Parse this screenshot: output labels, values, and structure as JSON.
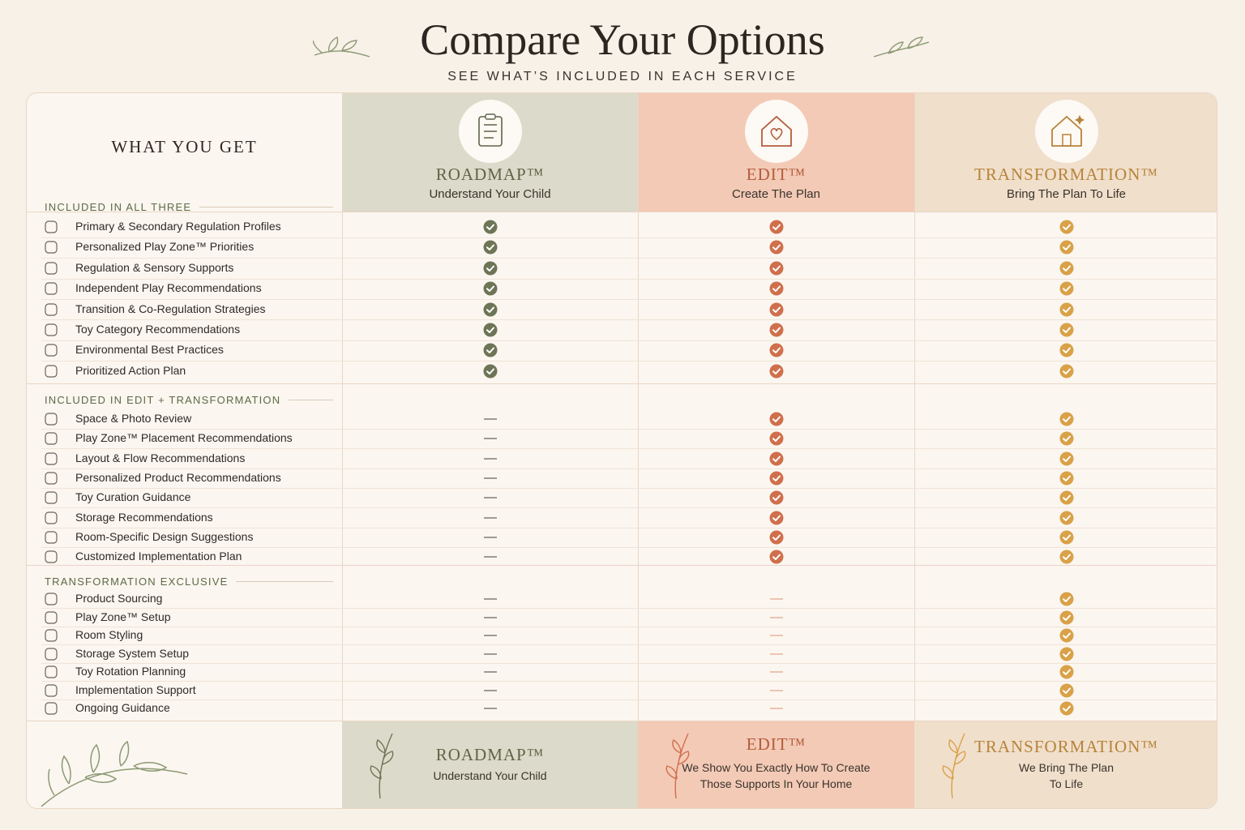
{
  "header": {
    "title": "Compare Your Options",
    "subtitle": "SEE WHAT’S INCLUDED IN EACH SERVICE"
  },
  "table": {
    "corner": "WHAT YOU GET",
    "columns": [
      {
        "name": "ROADMAP™",
        "tagline": "Understand Your Child",
        "color": "#6e7556",
        "name_color": "#5f6447",
        "background": "#dcdaca"
      },
      {
        "name": "EDIT™",
        "tagline": "Create The Plan",
        "color": "#d06f4c",
        "name_color": "#b45c3c",
        "background": "#f3cab6"
      },
      {
        "name": "TRANSFORMATION™",
        "tagline": "Bring The Plan To Life",
        "color": "#d9a148",
        "name_color": "#b7833a",
        "background": "#f0dfcb"
      }
    ],
    "sections": [
      {
        "title": "INCLUDED IN ALL THREE",
        "rows": [
          {
            "label": "Primary & Secondary Regulation Profiles",
            "included": [
              true,
              true,
              true
            ]
          },
          {
            "label": "Personalized Play Zone™ Priorities",
            "included": [
              true,
              true,
              true
            ]
          },
          {
            "label": "Regulation & Sensory Supports",
            "included": [
              true,
              true,
              true
            ]
          },
          {
            "label": "Independent Play Recommendations",
            "included": [
              true,
              true,
              true
            ]
          },
          {
            "label": "Transition & Co-Regulation Strategies",
            "included": [
              true,
              true,
              true
            ]
          },
          {
            "label": "Toy Category Recommendations",
            "included": [
              true,
              true,
              true
            ]
          },
          {
            "label": "Environmental Best Practices",
            "included": [
              true,
              true,
              true
            ]
          },
          {
            "label": "Prioritized Action Plan",
            "included": [
              true,
              true,
              true
            ]
          }
        ]
      },
      {
        "title": "INCLUDED IN EDIT + TRANSFORMATION",
        "rows": [
          {
            "label": "Space & Photo Review",
            "included": [
              false,
              true,
              true
            ]
          },
          {
            "label": "Play Zone™ Placement Recommendations",
            "included": [
              false,
              true,
              true
            ]
          },
          {
            "label": "Layout & Flow Recommendations",
            "included": [
              false,
              true,
              true
            ]
          },
          {
            "label": "Personalized Product Recommendations",
            "included": [
              false,
              true,
              true
            ]
          },
          {
            "label": "Toy Curation Guidance",
            "included": [
              false,
              true,
              true
            ]
          },
          {
            "label": "Storage Recommendations",
            "included": [
              false,
              true,
              true
            ]
          },
          {
            "label": "Room-Specific Design Suggestions",
            "included": [
              false,
              true,
              true
            ]
          },
          {
            "label": "Customized Implementation Plan",
            "included": [
              false,
              true,
              true
            ]
          }
        ]
      },
      {
        "title": "TRANSFORMATION EXCLUSIVE",
        "rows": [
          {
            "label": "Product Sourcing",
            "included": [
              false,
              false,
              true
            ]
          },
          {
            "label": "Play Zone™ Setup",
            "included": [
              false,
              false,
              true
            ]
          },
          {
            "label": "Room Styling",
            "included": [
              false,
              false,
              true
            ]
          },
          {
            "label": "Storage System Setup",
            "included": [
              false,
              false,
              true
            ]
          },
          {
            "label": "Toy Rotation Planning",
            "included": [
              false,
              false,
              true
            ]
          },
          {
            "label": "Implementation Support",
            "included": [
              false,
              false,
              true
            ]
          },
          {
            "label": "Ongoing Guidance",
            "included": [
              false,
              false,
              true
            ]
          }
        ]
      }
    ]
  },
  "footer": {
    "columns": [
      {
        "name": "ROADMAP™",
        "tagline": "Understand Your Child"
      },
      {
        "name": "EDIT™",
        "tagline": "We Show You Exactly How To Create Those Supports In Your Home"
      },
      {
        "name": "TRANSFORMATION™",
        "tagline": "We Bring The Plan To Life"
      }
    ]
  }
}
